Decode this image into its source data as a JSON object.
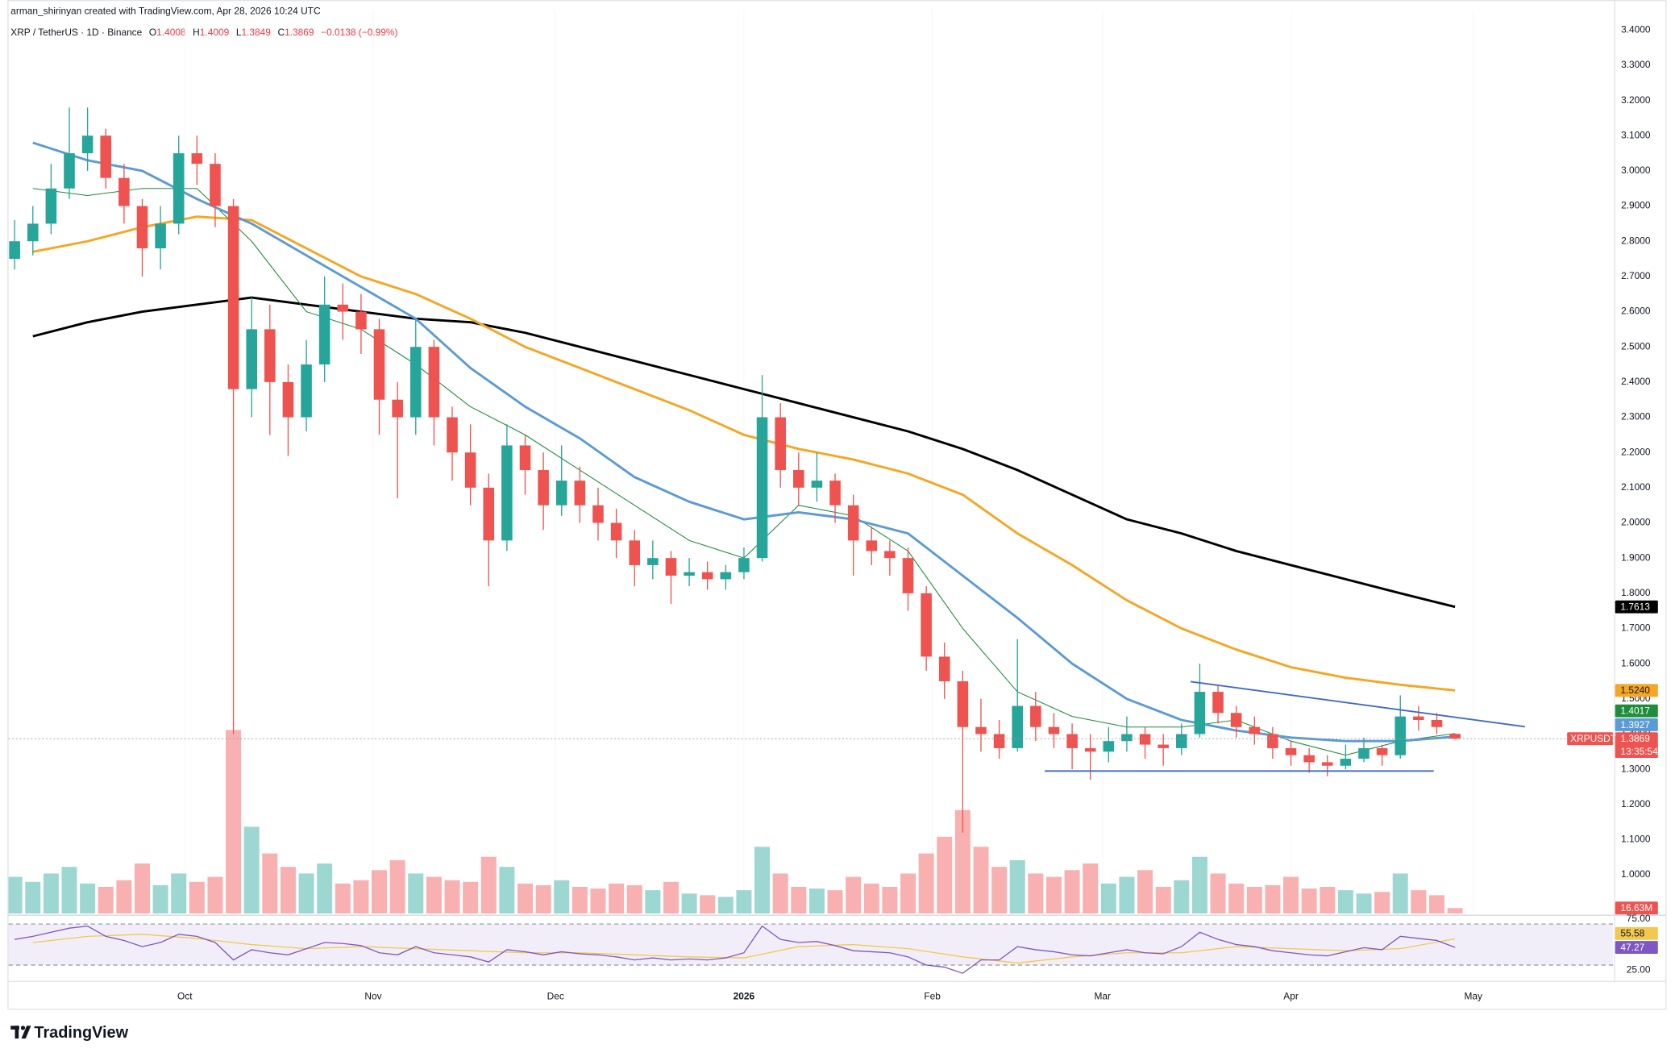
{
  "header": {
    "credit": "arman_shirinyan created with TradingView.com, Apr 28, 2026 10:24 UTC",
    "symbol": "XRP / TetherUS · 1D · Binance",
    "quote": [
      {
        "label": "O",
        "value": "1.4008"
      },
      {
        "label": "H",
        "value": "1.4009"
      },
      {
        "label": "L",
        "value": "1.3849"
      },
      {
        "label": "C",
        "value": "1.3869"
      },
      {
        "label": "",
        "value": "−0.0138 (−0.99%)"
      }
    ]
  },
  "chart_data": {
    "type": "candlestick",
    "up_color": "#26a69a",
    "down_color": "#ef5350",
    "x": [
      2,
      5,
      8,
      11,
      14,
      17,
      20,
      23,
      26,
      29,
      32,
      35,
      38,
      41,
      44,
      47,
      50,
      53,
      56,
      59,
      62,
      65,
      68,
      71,
      74,
      77,
      80,
      83,
      86,
      89,
      92,
      95,
      98,
      101,
      104,
      107,
      110,
      113,
      116,
      119,
      122,
      125,
      128,
      131,
      134,
      137,
      140,
      143,
      146,
      149,
      152,
      155,
      158,
      161,
      164,
      167,
      170,
      173,
      176,
      179,
      182,
      185,
      188,
      191,
      194,
      197,
      200,
      203,
      206,
      209,
      212,
      215,
      218,
      221,
      224,
      227,
      230,
      233,
      236,
      239
    ],
    "open": [
      2.75,
      2.8,
      2.85,
      2.95,
      3.05,
      3.1,
      2.98,
      2.9,
      2.78,
      2.85,
      3.05,
      3.02,
      2.9,
      2.38,
      2.55,
      2.4,
      2.3,
      2.45,
      2.62,
      2.6,
      2.55,
      2.35,
      2.3,
      2.5,
      2.3,
      2.2,
      2.1,
      1.95,
      2.22,
      2.15,
      2.05,
      2.12,
      2.05,
      2.0,
      1.95,
      1.88,
      1.9,
      1.85,
      1.86,
      1.84,
      1.86,
      1.9,
      2.3,
      2.15,
      2.1,
      2.12,
      2.05,
      1.95,
      1.92,
      1.9,
      1.8,
      1.62,
      1.55,
      1.42,
      1.4,
      1.36,
      1.48,
      1.42,
      1.4,
      1.36,
      1.35,
      1.38,
      1.4,
      1.37,
      1.36,
      1.4,
      1.52,
      1.46,
      1.42,
      1.4,
      1.36,
      1.34,
      1.32,
      1.31,
      1.33,
      1.36,
      1.34,
      1.45,
      1.44,
      1.4008
    ],
    "high": [
      2.86,
      2.9,
      3.02,
      3.18,
      3.18,
      3.12,
      3.02,
      2.92,
      2.9,
      3.1,
      3.1,
      3.05,
      2.92,
      2.64,
      2.62,
      2.45,
      2.52,
      2.7,
      2.68,
      2.65,
      2.58,
      2.4,
      2.58,
      2.52,
      2.33,
      2.28,
      2.14,
      2.28,
      2.25,
      2.2,
      2.22,
      2.16,
      2.1,
      2.04,
      1.98,
      1.95,
      1.92,
      1.9,
      1.89,
      1.88,
      1.93,
      2.42,
      2.34,
      2.2,
      2.2,
      2.14,
      2.08,
      1.99,
      1.95,
      1.93,
      1.82,
      1.66,
      1.58,
      1.5,
      1.44,
      1.67,
      1.52,
      1.46,
      1.43,
      1.4,
      1.42,
      1.45,
      1.42,
      1.4,
      1.43,
      1.6,
      1.54,
      1.48,
      1.45,
      1.42,
      1.38,
      1.36,
      1.34,
      1.37,
      1.39,
      1.37,
      1.51,
      1.48,
      1.46,
      1.4009
    ],
    "low": [
      2.72,
      2.76,
      2.82,
      2.92,
      3.0,
      2.95,
      2.85,
      2.7,
      2.72,
      2.82,
      2.96,
      2.84,
      1.4,
      2.3,
      2.25,
      2.19,
      2.26,
      2.4,
      2.52,
      2.48,
      2.25,
      2.07,
      2.25,
      2.22,
      2.12,
      2.05,
      1.82,
      1.92,
      2.08,
      1.98,
      2.02,
      2.0,
      1.95,
      1.9,
      1.82,
      1.84,
      1.77,
      1.82,
      1.81,
      1.81,
      1.84,
      1.89,
      2.1,
      2.05,
      2.06,
      2.0,
      1.85,
      1.88,
      1.85,
      1.75,
      1.58,
      1.5,
      1.12,
      1.35,
      1.33,
      1.35,
      1.38,
      1.36,
      1.3,
      1.27,
      1.32,
      1.35,
      1.33,
      1.31,
      1.34,
      1.39,
      1.43,
      1.39,
      1.37,
      1.33,
      1.31,
      1.29,
      1.28,
      1.3,
      1.32,
      1.31,
      1.33,
      1.41,
      1.4,
      1.3849
    ],
    "close": [
      2.8,
      2.85,
      2.95,
      3.05,
      3.1,
      2.98,
      2.9,
      2.78,
      2.85,
      3.05,
      3.02,
      2.9,
      2.38,
      2.55,
      2.4,
      2.3,
      2.45,
      2.62,
      2.6,
      2.55,
      2.35,
      2.3,
      2.5,
      2.3,
      2.2,
      2.1,
      1.95,
      2.22,
      2.15,
      2.05,
      2.12,
      2.05,
      2.0,
      1.95,
      1.88,
      1.9,
      1.85,
      1.86,
      1.84,
      1.86,
      1.9,
      2.3,
      2.15,
      2.1,
      2.12,
      2.05,
      1.95,
      1.92,
      1.9,
      1.8,
      1.62,
      1.55,
      1.42,
      1.4,
      1.36,
      1.48,
      1.42,
      1.4,
      1.36,
      1.35,
      1.38,
      1.4,
      1.37,
      1.36,
      1.4,
      1.52,
      1.46,
      1.42,
      1.4,
      1.36,
      1.34,
      1.32,
      1.31,
      1.33,
      1.36,
      1.34,
      1.45,
      1.44,
      1.42,
      1.3869
    ],
    "symbol_label": "XRPUSDT",
    "countdown": "13:35:54",
    "price_line_color": "#ef5350",
    "xlim": [
      1,
      265
    ],
    "xticks": [
      {
        "value": 30,
        "label": "Oct"
      },
      {
        "value": 61,
        "label": "Nov"
      },
      {
        "value": 91,
        "label": "Dec"
      },
      {
        "value": 122,
        "label": "2026"
      },
      {
        "value": 153,
        "label": "Feb"
      },
      {
        "value": 181,
        "label": "Mar"
      },
      {
        "value": 212,
        "label": "Apr"
      },
      {
        "value": 242,
        "label": "May"
      }
    ],
    "ylim": [
      0.89,
      3.455
    ],
    "yticks": [
      {
        "value": 1.0,
        "label": "1.0000"
      },
      {
        "value": 1.1,
        "label": "1.1000"
      },
      {
        "value": 1.2,
        "label": "1.2000"
      },
      {
        "value": 1.3,
        "label": "1.3000"
      },
      {
        "value": 1.4,
        "label": "1.4000"
      },
      {
        "value": 1.5,
        "label": "1.5000"
      },
      {
        "value": 1.6,
        "label": "1.6000"
      },
      {
        "value": 1.7,
        "label": "1.7000"
      },
      {
        "value": 1.8,
        "label": "1.8000"
      },
      {
        "value": 1.9,
        "label": "1.9000"
      },
      {
        "value": 2.0,
        "label": "2.0000"
      },
      {
        "value": 2.1,
        "label": "2.1000"
      },
      {
        "value": 2.2,
        "label": "2.2000"
      },
      {
        "value": 2.3,
        "label": "2.3000"
      },
      {
        "value": 2.4,
        "label": "2.4000"
      },
      {
        "value": 2.5,
        "label": "2.5000"
      },
      {
        "value": 2.6,
        "label": "2.6000"
      },
      {
        "value": 2.7,
        "label": "2.7000"
      },
      {
        "value": 2.8,
        "label": "2.8000"
      },
      {
        "value": 2.9,
        "label": "2.9000"
      },
      {
        "value": 3.0,
        "label": "3.0000"
      },
      {
        "value": 3.1,
        "label": "3.1000"
      },
      {
        "value": 3.2,
        "label": "3.2000"
      },
      {
        "value": 3.3,
        "label": "3.3000"
      },
      {
        "value": 3.4,
        "label": "3.4000"
      }
    ],
    "grid": false,
    "moving_averages": [
      {
        "color": "#000000",
        "width": 2.2,
        "last_label": "1.7613",
        "x": [
          5,
          14,
          23,
          32,
          41,
          50,
          59,
          68,
          77,
          86,
          95,
          104,
          113,
          122,
          131,
          140,
          149,
          158,
          167,
          176,
          185,
          194,
          203,
          212,
          221,
          230,
          239
        ],
        "values": [
          2.53,
          2.57,
          2.6,
          2.62,
          2.64,
          2.62,
          2.6,
          2.58,
          2.57,
          2.54,
          2.5,
          2.46,
          2.42,
          2.38,
          2.34,
          2.3,
          2.26,
          2.21,
          2.15,
          2.08,
          2.01,
          1.97,
          1.92,
          1.88,
          1.84,
          1.8,
          1.7613
        ]
      },
      {
        "color": "#f5a623",
        "width": 2.2,
        "last_label": "1.5240",
        "x": [
          5,
          14,
          23,
          32,
          41,
          50,
          59,
          68,
          77,
          86,
          95,
          104,
          113,
          122,
          131,
          140,
          149,
          158,
          167,
          176,
          185,
          194,
          203,
          212,
          221,
          230,
          239
        ],
        "values": [
          2.77,
          2.8,
          2.84,
          2.87,
          2.86,
          2.78,
          2.7,
          2.65,
          2.58,
          2.5,
          2.44,
          2.38,
          2.32,
          2.25,
          2.21,
          2.18,
          2.14,
          2.08,
          1.97,
          1.88,
          1.78,
          1.7,
          1.64,
          1.59,
          1.56,
          1.54,
          1.524
        ]
      },
      {
        "color": "#1e8c3a",
        "width": 0.8,
        "last_label": "1.4017",
        "x": [
          5,
          14,
          23,
          32,
          41,
          50,
          59,
          68,
          77,
          86,
          95,
          104,
          113,
          122,
          131,
          140,
          149,
          158,
          167,
          176,
          185,
          194,
          203,
          212,
          221,
          230,
          239
        ],
        "values": [
          2.95,
          2.93,
          2.95,
          2.95,
          2.8,
          2.6,
          2.55,
          2.45,
          2.33,
          2.25,
          2.15,
          2.05,
          1.95,
          1.9,
          2.05,
          2.02,
          1.92,
          1.7,
          1.52,
          1.45,
          1.42,
          1.42,
          1.44,
          1.38,
          1.34,
          1.38,
          1.4017
        ]
      },
      {
        "color": "#5b9bd5",
        "width": 2.2,
        "last_label": "1.3927",
        "x": [
          5,
          14,
          23,
          32,
          41,
          50,
          59,
          68,
          77,
          86,
          95,
          104,
          113,
          122,
          131,
          140,
          149,
          158,
          167,
          176,
          185,
          194,
          203,
          212,
          221,
          230,
          239
        ],
        "values": [
          3.08,
          3.03,
          3.0,
          2.92,
          2.85,
          2.76,
          2.67,
          2.58,
          2.44,
          2.33,
          2.24,
          2.13,
          2.06,
          2.01,
          2.03,
          2.01,
          1.97,
          1.85,
          1.73,
          1.6,
          1.5,
          1.44,
          1.41,
          1.39,
          1.38,
          1.38,
          1.3927
        ]
      }
    ],
    "drawings": [
      {
        "color": "#3f6bc4",
        "x": [
          195.5,
          250.5
        ],
        "values": [
          1.549,
          1.421
        ]
      },
      {
        "color": "#3f6bc4",
        "x": [
          171.5,
          235.5
        ],
        "values": [
          1.295,
          1.295
        ]
      }
    ],
    "volume": {
      "ylim": [
        0,
        560
      ],
      "label": "16.63M",
      "values": [
        110,
        95,
        120,
        140,
        90,
        80,
        100,
        150,
        85,
        120,
        95,
        110,
        550,
        260,
        180,
        140,
        120,
        150,
        90,
        100,
        130,
        160,
        120,
        110,
        100,
        95,
        170,
        140,
        90,
        85,
        100,
        80,
        75,
        90,
        85,
        70,
        95,
        60,
        55,
        50,
        70,
        200,
        120,
        80,
        75,
        70,
        110,
        90,
        80,
        120,
        180,
        230,
        310,
        200,
        140,
        160,
        120,
        110,
        130,
        150,
        90,
        110,
        130,
        80,
        100,
        170,
        120,
        90,
        80,
        85,
        110,
        75,
        80,
        70,
        60,
        65,
        120,
        70,
        55,
        16.63
      ]
    },
    "rsi": {
      "color": "#7e57c2",
      "ma_color": "#f2c94c",
      "band_color": "#7e57c2",
      "ylim": [
        14.6,
        78.1
      ],
      "bands": [
        30,
        70
      ],
      "yticks": [
        {
          "value": 75,
          "label": "75.00"
        },
        {
          "value": 25,
          "label": "25.00"
        }
      ],
      "last_label": "47.27",
      "ma_last_label": "55.58",
      "values": [
        55,
        58,
        62,
        66,
        68,
        58,
        54,
        48,
        52,
        60,
        58,
        52,
        35,
        45,
        42,
        40,
        46,
        52,
        51,
        49,
        42,
        40,
        48,
        42,
        40,
        38,
        33,
        45,
        43,
        40,
        43,
        41,
        40,
        38,
        35,
        37,
        35,
        36,
        35,
        37,
        42,
        68,
        55,
        52,
        53,
        49,
        44,
        43,
        42,
        38,
        30,
        28,
        22,
        35,
        35,
        48,
        45,
        43,
        40,
        39,
        42,
        45,
        42,
        41,
        48,
        62,
        55,
        50,
        48,
        44,
        42,
        40,
        39,
        43,
        47,
        45,
        58,
        56,
        54,
        47.27
      ],
      "ma_x": [
        5,
        14,
        23,
        32,
        41,
        50,
        59,
        68,
        77,
        86,
        95,
        104,
        113,
        122,
        131,
        140,
        149,
        158,
        167,
        176,
        185,
        194,
        203,
        212,
        221,
        230,
        239
      ],
      "ma_values": [
        52,
        58,
        60,
        56,
        50,
        46,
        48,
        46,
        44,
        42,
        42,
        40,
        38,
        37,
        48,
        50,
        46,
        38,
        32,
        38,
        42,
        42,
        48,
        46,
        44,
        46,
        55.58
      ]
    }
  },
  "footer": {
    "brand": "TradingView"
  }
}
